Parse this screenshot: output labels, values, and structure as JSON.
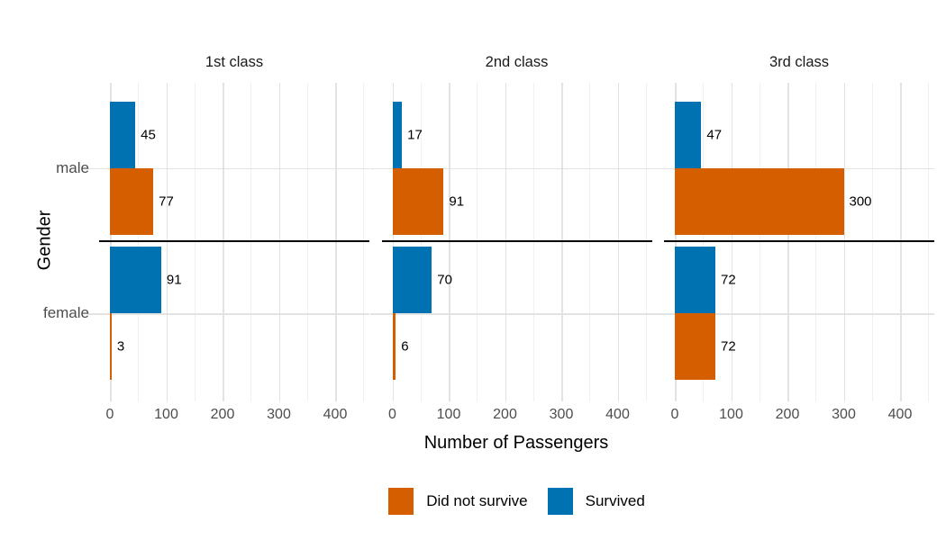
{
  "chart_data": {
    "type": "bar",
    "orientation": "horizontal",
    "title": "",
    "xlabel": "Number of Passengers",
    "ylabel": "Gender",
    "categories": [
      "male",
      "female"
    ],
    "x_ticks": [
      0,
      100,
      200,
      300,
      400
    ],
    "xlim": [
      0,
      450
    ],
    "major_grid_step": 100,
    "minor_grid_step": 50,
    "grid": true,
    "legend_position": "bottom",
    "legend_items": [
      {
        "label": "Did not survive",
        "color": "#D55E00"
      },
      {
        "label": "Survived",
        "color": "#0072B2"
      }
    ],
    "series": [
      {
        "name": "Survived",
        "color": "#0072B2"
      },
      {
        "name": "Did not survive",
        "color": "#D55E00"
      }
    ],
    "facets": [
      {
        "title": "1st class",
        "rows": [
          {
            "category": "male",
            "survived": 45,
            "did_not_survive": 77
          },
          {
            "category": "female",
            "survived": 91,
            "did_not_survive": 3
          }
        ]
      },
      {
        "title": "2nd class",
        "rows": [
          {
            "category": "male",
            "survived": 17,
            "did_not_survive": 91
          },
          {
            "category": "female",
            "survived": 70,
            "did_not_survive": 6
          }
        ]
      },
      {
        "title": "3rd class",
        "rows": [
          {
            "category": "male",
            "survived": 47,
            "did_not_survive": 300
          },
          {
            "category": "female",
            "survived": 72,
            "did_not_survive": 72
          }
        ]
      }
    ],
    "separator_line_color": "#000000",
    "colors": {
      "survived": "#0072B2",
      "did_not_survive": "#D55E00",
      "grid_major": "#E3E3E3",
      "grid_minor": "#F0F0F0",
      "tick_label": "#4D4D4D",
      "background": "#FFFFFF"
    }
  }
}
